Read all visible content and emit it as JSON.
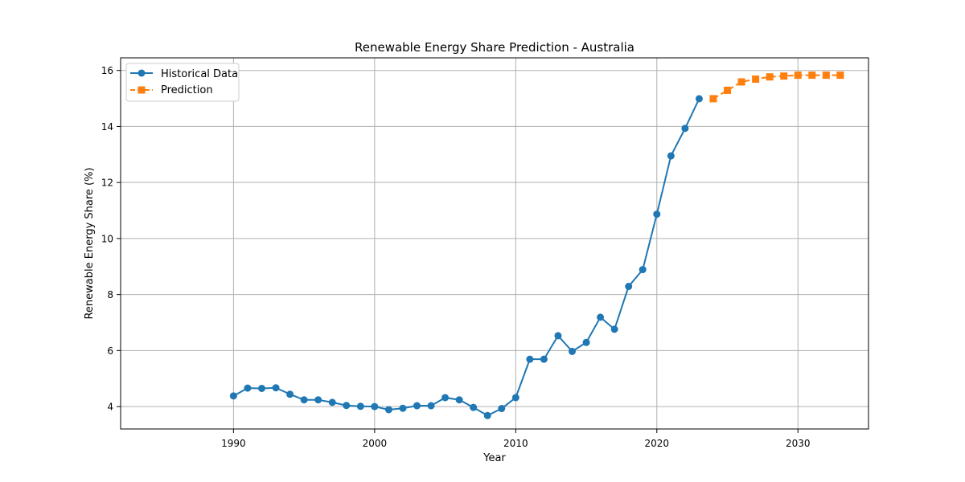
{
  "chart_data": {
    "type": "line",
    "title": "Renewable Energy Share Prediction - Australia",
    "xlabel": "Year",
    "ylabel": "Renewable Energy Share (%)",
    "xlim": [
      1982,
      2035
    ],
    "ylim": [
      3.2,
      16.45
    ],
    "xticks": [
      1990,
      2000,
      2010,
      2020,
      2030
    ],
    "yticks": [
      4,
      6,
      8,
      10,
      12,
      14,
      16
    ],
    "grid": true,
    "legend_position": "upper-left",
    "series": [
      {
        "name": "Historical Data",
        "color": "#1f77b4",
        "line_style": "solid",
        "marker": "circle",
        "x": [
          1990,
          1991,
          1992,
          1993,
          1994,
          1995,
          1996,
          1997,
          1998,
          1999,
          2000,
          2001,
          2002,
          2003,
          2004,
          2005,
          2006,
          2007,
          2008,
          2009,
          2010,
          2011,
          2012,
          2013,
          2014,
          2015,
          2016,
          2017,
          2018,
          2019,
          2020,
          2021,
          2022,
          2023
        ],
        "y": [
          4.38,
          4.66,
          4.65,
          4.67,
          4.44,
          4.24,
          4.24,
          4.15,
          4.04,
          4.01,
          4.0,
          3.89,
          3.94,
          4.03,
          4.03,
          4.32,
          4.24,
          3.97,
          3.68,
          3.93,
          4.32,
          5.69,
          5.69,
          6.53,
          5.97,
          6.29,
          7.19,
          6.76,
          8.29,
          8.89,
          10.87,
          12.95,
          13.93,
          14.99
        ]
      },
      {
        "name": "Prediction",
        "color": "#ff7f0e",
        "line_style": "dashed",
        "marker": "square",
        "x": [
          2024,
          2025,
          2026,
          2027,
          2028,
          2029,
          2030,
          2031,
          2032,
          2033
        ],
        "y": [
          14.99,
          15.29,
          15.59,
          15.69,
          15.77,
          15.8,
          15.83,
          15.83,
          15.83,
          15.83
        ]
      }
    ]
  }
}
